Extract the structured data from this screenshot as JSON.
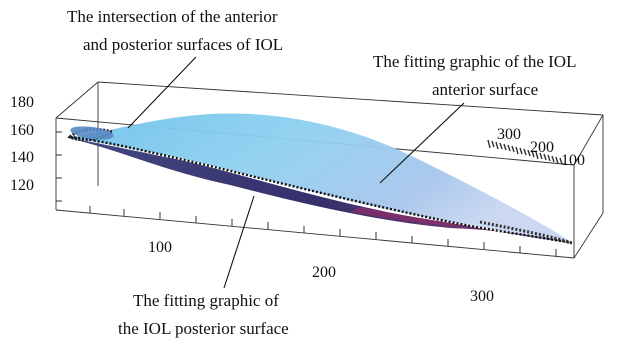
{
  "annotations": {
    "intersection": [
      "The intersection of the anterior",
      "and posterior surfaces of IOL"
    ],
    "anterior": [
      "The fitting graphic of the IOL",
      "anterior surface"
    ],
    "posterior": [
      "The fitting graphic of",
      "the IOL posterior surface"
    ]
  },
  "z_ticks": [
    "180",
    "160",
    "140",
    "120"
  ],
  "x_ticks": [
    "100",
    "200",
    "300"
  ],
  "y_ticks": [
    "300",
    "200",
    "100"
  ],
  "colors": {
    "anterior_surface": "#8ec9ea",
    "posterior_surface": "#2e2a6e",
    "posterior_highlight": "#8a2f6a",
    "box_edge": "#333333"
  }
}
